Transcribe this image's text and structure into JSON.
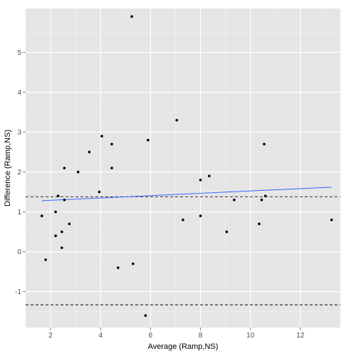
{
  "chart_data": {
    "type": "scatter",
    "title": "",
    "xlabel": "Average (Ramp,NS)",
    "ylabel": "Difference (Ramp,NS)",
    "xlim": [
      1.0,
      13.6
    ],
    "ylim": [
      -1.9,
      6.1
    ],
    "x_ticks": [
      2,
      4,
      6,
      8,
      10,
      12
    ],
    "y_ticks": [
      -1,
      0,
      1,
      2,
      3,
      4,
      5
    ],
    "grid": true,
    "points": [
      {
        "x": 1.65,
        "y": 0.9
      },
      {
        "x": 1.8,
        "y": -0.2
      },
      {
        "x": 2.2,
        "y": 1.0
      },
      {
        "x": 2.2,
        "y": 0.4
      },
      {
        "x": 2.3,
        "y": 1.4
      },
      {
        "x": 2.45,
        "y": 0.5
      },
      {
        "x": 2.45,
        "y": 0.1
      },
      {
        "x": 2.55,
        "y": 2.1
      },
      {
        "x": 2.55,
        "y": 1.3
      },
      {
        "x": 2.75,
        "y": 0.7
      },
      {
        "x": 3.1,
        "y": 2.0
      },
      {
        "x": 3.55,
        "y": 2.5
      },
      {
        "x": 3.95,
        "y": 1.5
      },
      {
        "x": 4.05,
        "y": 2.9
      },
      {
        "x": 4.45,
        "y": 2.7
      },
      {
        "x": 4.45,
        "y": 2.1
      },
      {
        "x": 4.7,
        "y": -0.4
      },
      {
        "x": 5.25,
        "y": 5.9
      },
      {
        "x": 5.3,
        "y": -0.3
      },
      {
        "x": 5.8,
        "y": -1.6
      },
      {
        "x": 5.9,
        "y": 2.8
      },
      {
        "x": 7.05,
        "y": 3.3
      },
      {
        "x": 7.3,
        "y": 0.8
      },
      {
        "x": 8.0,
        "y": 1.8
      },
      {
        "x": 8.0,
        "y": 0.9
      },
      {
        "x": 8.35,
        "y": 1.9
      },
      {
        "x": 9.05,
        "y": 0.5
      },
      {
        "x": 9.35,
        "y": 1.3
      },
      {
        "x": 10.35,
        "y": 0.7
      },
      {
        "x": 10.45,
        "y": 1.3
      },
      {
        "x": 10.55,
        "y": 2.7
      },
      {
        "x": 10.6,
        "y": 1.4
      },
      {
        "x": 13.25,
        "y": 0.8
      }
    ],
    "reference_lines": [
      {
        "y": 1.38,
        "style": "dashed",
        "color": "#333333"
      },
      {
        "y": -1.33,
        "style": "dashed",
        "color": "#000000"
      }
    ],
    "trend_line": {
      "x": [
        1.65,
        13.25
      ],
      "y": [
        1.28,
        1.62
      ],
      "color": "#3366ff"
    },
    "colors": {
      "panel_bg": "#e5e5e5",
      "grid_major": "#ffffff",
      "grid_minor": "#f2f2f2",
      "point": "#000000",
      "tick": "#7f7f7f"
    }
  }
}
